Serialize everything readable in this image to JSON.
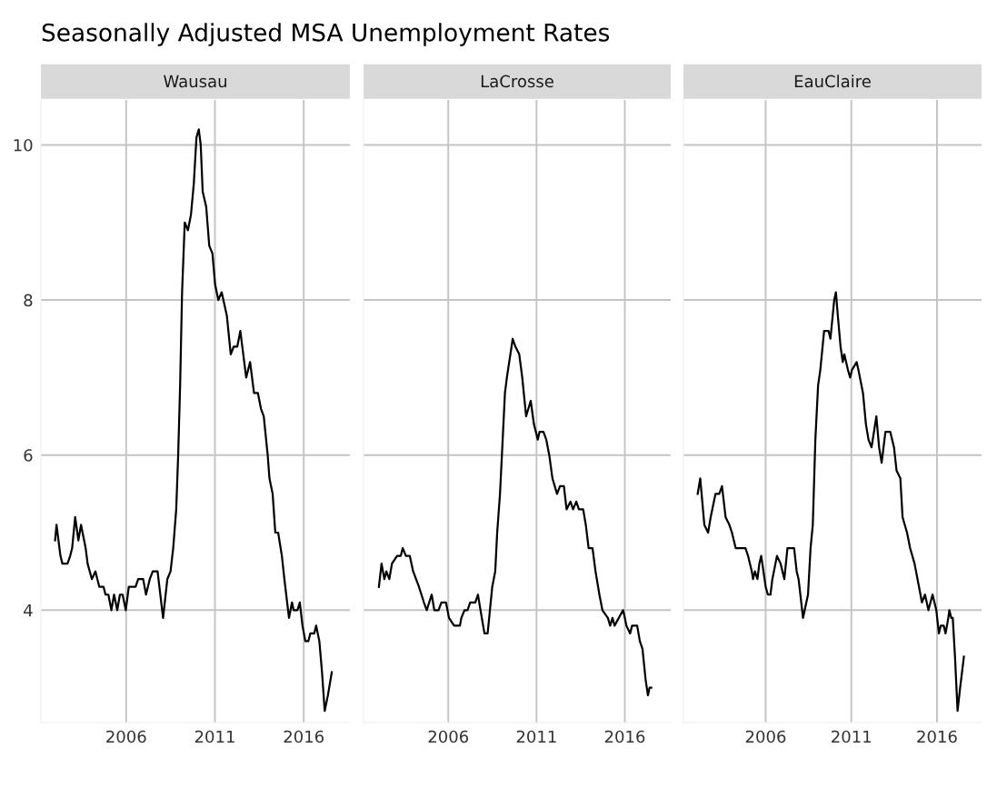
{
  "chart_data": [
    {
      "type": "line",
      "title": "Wausau",
      "annotations": [
        "Seasonally Adjusted MSA Unemployment Rates"
      ],
      "xlim": [
        2001.2,
        2018.6
      ],
      "xticks": [
        2006,
        2011,
        2016
      ],
      "ylim": [
        2.55,
        10.58
      ],
      "yticks": [
        4,
        6,
        8,
        10
      ],
      "grid": true,
      "tick_labels": "xy",
      "series": [
        {
          "color": "#000000",
          "x": [
            2002.0,
            2002.08,
            2002.3,
            2002.41,
            2002.7,
            2002.85,
            2002.96,
            2003.13,
            2003.31,
            2003.46,
            2003.72,
            2003.83,
            2004.07,
            2004.27,
            2004.49,
            2004.73,
            2004.84,
            2005.0,
            2005.17,
            2005.32,
            2005.5,
            2005.65,
            2005.8,
            2005.98,
            2006.15,
            2006.53,
            2006.68,
            2006.96,
            2007.12,
            2007.33,
            2007.5,
            2007.77,
            2008.08,
            2008.32,
            2008.5,
            2008.65,
            2008.82,
            2008.93,
            2009.04,
            2009.15,
            2009.3,
            2009.48,
            2009.65,
            2009.81,
            2009.96,
            2010.09,
            2010.2,
            2010.31,
            2010.51,
            2010.68,
            2010.86,
            2011.01,
            2011.19,
            2011.38,
            2011.67,
            2011.89,
            2012.06,
            2012.26,
            2012.43,
            2012.76,
            2012.98,
            2013.2,
            2013.42,
            2013.59,
            2013.75,
            2013.97,
            2014.07,
            2014.25,
            2014.4,
            2014.56,
            2014.77,
            2014.91,
            2015.17,
            2015.34,
            2015.43,
            2015.65,
            2015.78,
            2015.93,
            2016.09,
            2016.26,
            2016.37,
            2016.59,
            2016.7,
            2016.88,
            2017.03,
            2017.18,
            2017.36,
            2017.58
          ],
          "values": [
            4.9,
            5.1,
            4.7,
            4.6,
            4.6,
            4.7,
            4.8,
            5.2,
            4.9,
            5.1,
            4.8,
            4.6,
            4.4,
            4.5,
            4.3,
            4.3,
            4.2,
            4.2,
            4.0,
            4.2,
            4.0,
            4.2,
            4.2,
            4.0,
            4.3,
            4.3,
            4.4,
            4.4,
            4.2,
            4.4,
            4.5,
            4.5,
            3.9,
            4.4,
            4.5,
            4.8,
            5.3,
            6.0,
            6.9,
            8.1,
            9.0,
            8.9,
            9.1,
            9.5,
            10.1,
            10.2,
            10.0,
            9.4,
            9.2,
            8.7,
            8.6,
            8.2,
            8.0,
            8.1,
            7.8,
            7.3,
            7.4,
            7.4,
            7.6,
            7.0,
            7.2,
            6.8,
            6.8,
            6.6,
            6.5,
            6.0,
            5.7,
            5.5,
            5.0,
            5.0,
            4.7,
            4.4,
            3.9,
            4.1,
            4.0,
            4.0,
            4.1,
            3.8,
            3.6,
            3.6,
            3.7,
            3.7,
            3.8,
            3.6,
            3.2,
            2.7,
            2.9,
            3.2
          ]
        }
      ]
    },
    {
      "type": "line",
      "title": "LaCrosse",
      "xlim": [
        2001.2,
        2018.6
      ],
      "xticks": [
        2006,
        2011,
        2016
      ],
      "ylim": [
        2.55,
        10.58
      ],
      "yticks": [
        4,
        6,
        8,
        10
      ],
      "grid": true,
      "tick_labels": "x",
      "series": [
        {
          "color": "#000000",
          "x": [
            2002.07,
            2002.22,
            2002.38,
            2002.49,
            2002.66,
            2002.81,
            2003.1,
            2003.31,
            2003.42,
            2003.6,
            2003.82,
            2004.01,
            2004.34,
            2004.62,
            2004.78,
            2005.06,
            2005.21,
            2005.45,
            2005.61,
            2005.87,
            2006.04,
            2006.33,
            2006.66,
            2006.74,
            2006.92,
            2007.09,
            2007.24,
            2007.53,
            2007.68,
            2007.9,
            2008.05,
            2008.23,
            2008.49,
            2008.66,
            2008.77,
            2008.93,
            2009.06,
            2009.21,
            2009.32,
            2009.65,
            2009.8,
            2010.02,
            2010.19,
            2010.41,
            2010.67,
            2010.85,
            2011.07,
            2011.17,
            2011.39,
            2011.55,
            2011.72,
            2011.9,
            2012.16,
            2012.33,
            2012.55,
            2012.7,
            2012.92,
            2013.07,
            2013.25,
            2013.4,
            2013.64,
            2013.79,
            2013.95,
            2014.17,
            2014.34,
            2014.56,
            2014.73,
            2015.04,
            2015.17,
            2015.3,
            2015.42,
            2015.9,
            2016.0,
            2016.09,
            2016.3,
            2016.41,
            2016.7,
            2016.85,
            2017.0,
            2017.18,
            2017.31,
            2017.4,
            2017.5
          ],
          "values": [
            4.3,
            4.6,
            4.4,
            4.5,
            4.4,
            4.6,
            4.7,
            4.7,
            4.8,
            4.7,
            4.7,
            4.5,
            4.3,
            4.1,
            4.0,
            4.2,
            4.0,
            4.0,
            4.1,
            4.1,
            3.9,
            3.8,
            3.8,
            3.9,
            4.0,
            4.0,
            4.1,
            4.1,
            4.2,
            3.9,
            3.7,
            3.7,
            4.3,
            4.5,
            5.0,
            5.5,
            6.1,
            6.8,
            7.0,
            7.5,
            7.4,
            7.3,
            7.0,
            6.5,
            6.7,
            6.4,
            6.2,
            6.3,
            6.3,
            6.2,
            6.0,
            5.7,
            5.5,
            5.6,
            5.6,
            5.3,
            5.4,
            5.3,
            5.4,
            5.3,
            5.3,
            5.1,
            4.8,
            4.8,
            4.5,
            4.2,
            4.0,
            3.9,
            3.8,
            3.9,
            3.8,
            4.0,
            3.9,
            3.8,
            3.7,
            3.8,
            3.8,
            3.6,
            3.5,
            3.1,
            2.9,
            3.0,
            3.0
          ]
        }
      ]
    },
    {
      "type": "line",
      "title": "EauClaire",
      "xlim": [
        2001.2,
        2018.6
      ],
      "xticks": [
        2006,
        2011,
        2016
      ],
      "ylim": [
        2.55,
        10.58
      ],
      "yticks": [
        4,
        6,
        8,
        10
      ],
      "grid": true,
      "tick_labels": "x",
      "series": [
        {
          "color": "#000000",
          "x": [
            2002.03,
            2002.18,
            2002.42,
            2002.64,
            2002.79,
            2003.07,
            2003.29,
            2003.45,
            2003.66,
            2003.88,
            2004.03,
            2004.25,
            2004.82,
            2004.97,
            2005.19,
            2005.26,
            2005.37,
            2005.52,
            2005.63,
            2005.74,
            2006.0,
            2006.13,
            2006.28,
            2006.39,
            2006.66,
            2006.87,
            2007.09,
            2007.27,
            2007.38,
            2007.66,
            2007.81,
            2007.92,
            2008.18,
            2008.47,
            2008.62,
            2008.75,
            2008.9,
            2009.06,
            2009.19,
            2009.41,
            2009.67,
            2009.78,
            2010.0,
            2010.1,
            2010.21,
            2010.37,
            2010.5,
            2010.59,
            2010.8,
            2010.93,
            2011.04,
            2011.31,
            2011.41,
            2011.68,
            2011.85,
            2012.0,
            2012.18,
            2012.46,
            2012.62,
            2012.77,
            2012.99,
            2013.27,
            2013.49,
            2013.64,
            2013.86,
            2013.99,
            2014.25,
            2014.43,
            2014.69,
            2014.95,
            2015.12,
            2015.3,
            2015.5,
            2015.74,
            2015.96,
            2016.11,
            2016.22,
            2016.39,
            2016.5,
            2016.66,
            2016.72,
            2016.83,
            2016.92,
            2017.05,
            2017.2,
            2017.35,
            2017.57
          ],
          "values": [
            5.5,
            5.7,
            5.1,
            5.0,
            5.2,
            5.5,
            5.5,
            5.6,
            5.2,
            5.1,
            5.0,
            4.8,
            4.8,
            4.7,
            4.5,
            4.4,
            4.5,
            4.4,
            4.6,
            4.7,
            4.3,
            4.2,
            4.2,
            4.4,
            4.7,
            4.6,
            4.4,
            4.8,
            4.8,
            4.8,
            4.5,
            4.4,
            3.9,
            4.2,
            4.8,
            5.1,
            6.2,
            6.9,
            7.1,
            7.6,
            7.6,
            7.5,
            8.0,
            8.1,
            7.8,
            7.4,
            7.2,
            7.3,
            7.1,
            7.0,
            7.1,
            7.2,
            7.1,
            6.8,
            6.4,
            6.2,
            6.1,
            6.5,
            6.1,
            5.9,
            6.3,
            6.3,
            6.1,
            5.8,
            5.7,
            5.2,
            5.0,
            4.8,
            4.6,
            4.3,
            4.1,
            4.2,
            4.0,
            4.2,
            4.0,
            3.7,
            3.8,
            3.8,
            3.7,
            3.9,
            4.0,
            3.9,
            3.9,
            3.4,
            2.7,
            3.0,
            3.4
          ]
        }
      ]
    }
  ]
}
